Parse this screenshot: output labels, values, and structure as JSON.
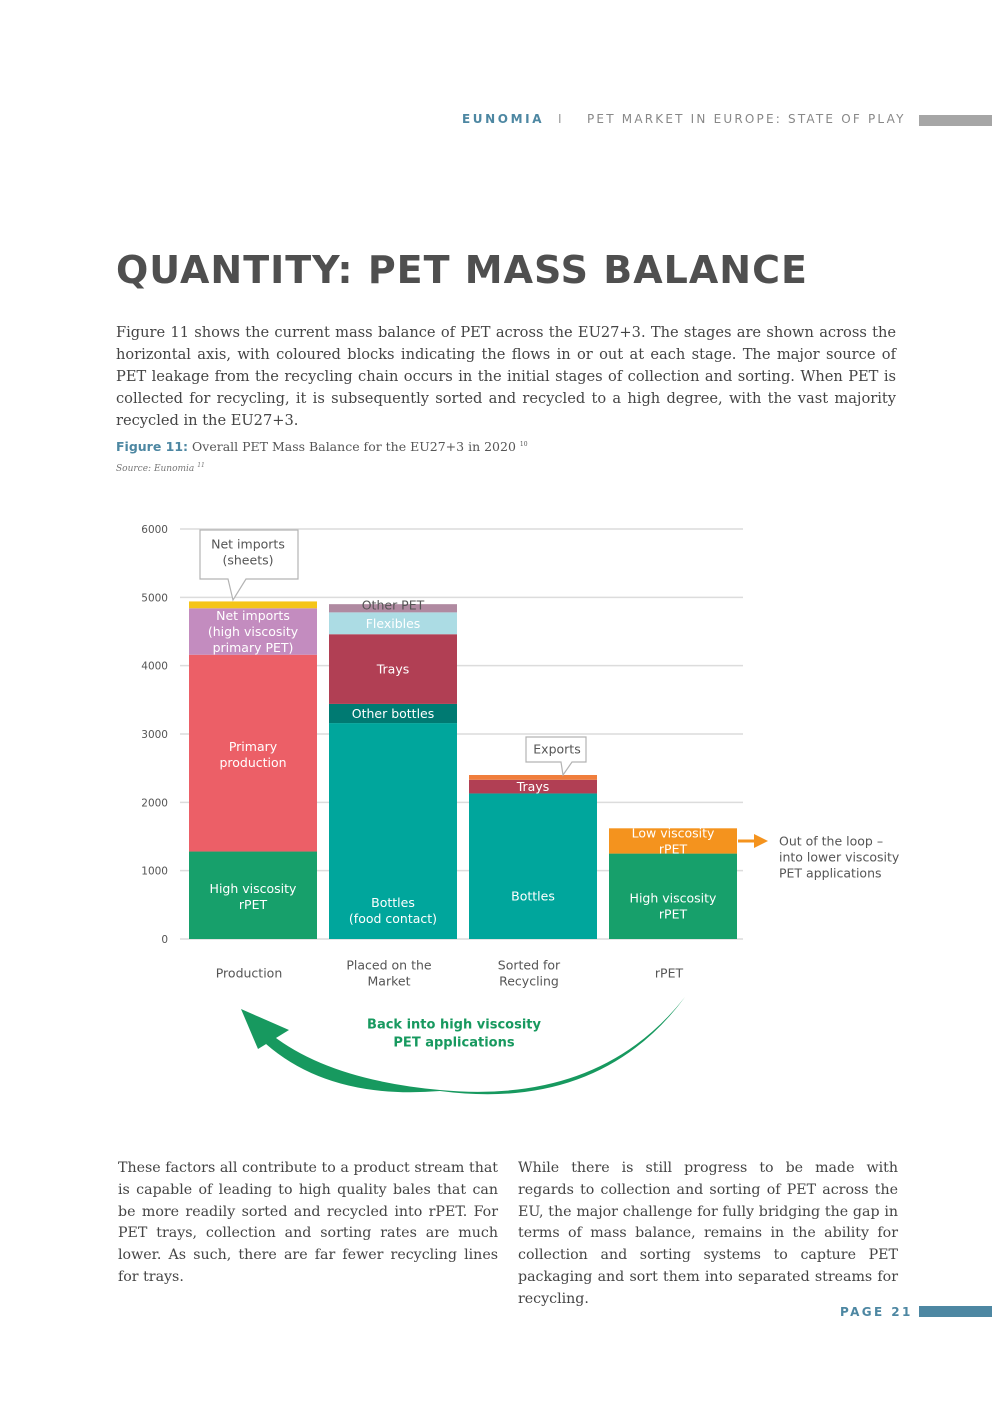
{
  "header": {
    "brand": "EUNOMIA",
    "separator": "I",
    "title": "PET MARKET IN EUROPE: STATE OF PLAY"
  },
  "page_title": "QUANTITY: PET MASS BALANCE",
  "intro": "Figure 11 shows the current mass balance of PET across the EU27+3. The stages are shown across the horizontal axis, with coloured blocks indicating the flows in or out at each stage. The major source of PET leakage from the recycling chain occurs in the initial stages of collection and sorting. When PET is collected for recycling, it is subsequently sorted and recycled to a high degree, with the vast majority recycled in the EU27+3.",
  "figure": {
    "label": "Figure 11:",
    "caption": "Overall PET Mass Balance for the EU27+3 in 2020",
    "caption_ref": "10",
    "source": "Source: Eunomia",
    "source_ref": "11"
  },
  "chart_data": {
    "type": "bar",
    "stacked": true,
    "categories": [
      "Production",
      "Placed on the Market",
      "Sorted for Recycling",
      "rPET"
    ],
    "category_lines": [
      [
        "Production"
      ],
      [
        "Placed on the",
        "Market"
      ],
      [
        "Sorted for",
        "Recycling"
      ],
      [
        "rPET"
      ]
    ],
    "ylim": [
      0,
      6000
    ],
    "yticks": [
      0,
      1000,
      2000,
      3000,
      4000,
      5000,
      6000
    ],
    "grid": true,
    "series_segments": [
      [
        {
          "label": "High viscosity rPET",
          "lines": [
            "High viscosity",
            "rPET"
          ],
          "value": 1280,
          "color": "#17a06b"
        },
        {
          "label": "Primary production",
          "lines": [
            "Primary",
            "production"
          ],
          "value": 2880,
          "color": "#ec5f67"
        },
        {
          "label": "Net imports (high viscosity primary PET)",
          "lines": [
            "Net imports",
            "(high viscosity",
            "primary PET)"
          ],
          "value": 680,
          "color": "#c38cbf"
        },
        {
          "label": "Net imports (sheets)",
          "lines": [],
          "value": 100,
          "color": "#f5c518"
        }
      ],
      [
        {
          "label": "Bottles (food contact)",
          "lines": [
            "Bottles",
            "(food contact)"
          ],
          "value": 3160,
          "color": "#00a69c"
        },
        {
          "label": "Other bottles",
          "lines": [
            "Other bottles"
          ],
          "value": 280,
          "color": "#007a72"
        },
        {
          "label": "Trays",
          "lines": [
            "Trays"
          ],
          "value": 1020,
          "color": "#b13f54"
        },
        {
          "label": "Flexibles",
          "lines": [
            "Flexibles"
          ],
          "value": 320,
          "color": "#acdce4"
        },
        {
          "label": "Other PET",
          "lines": [
            "Other PET"
          ],
          "value": 120,
          "color": "#b08aa1"
        }
      ],
      [
        {
          "label": "Bottles",
          "lines": [
            "Bottles"
          ],
          "value": 2130,
          "color": "#00a69c"
        },
        {
          "label": "Trays",
          "lines": [
            "Trays"
          ],
          "value": 200,
          "color": "#b13f54"
        },
        {
          "label": "Exports",
          "lines": [],
          "value": 70,
          "color": "#f07e3c"
        }
      ],
      [
        {
          "label": "High viscosity rPET",
          "lines": [
            "High viscosity",
            "rPET"
          ],
          "value": 1250,
          "color": "#17a06b"
        },
        {
          "label": "Low viscosity rPET",
          "lines": [
            "Low viscosity",
            "rPET"
          ],
          "value": 370,
          "color": "#f4931e"
        }
      ]
    ],
    "callouts": {
      "net_imports_sheets": [
        "Net imports",
        "(sheets)"
      ],
      "exports": [
        "Exports"
      ]
    },
    "annotations": {
      "out_of_loop": [
        "Out of the loop –",
        "into lower viscosity",
        "PET applications"
      ],
      "loop_back": [
        "Back into high viscosity",
        "PET applications"
      ]
    },
    "colors": {
      "grid": "#dcdcdc",
      "axis_text": "#555555",
      "loop_arrow": "#17995f",
      "out_arrow": "#f4931e"
    }
  },
  "body_left": "These factors all contribute to a product stream that is capable of leading to high quality bales that can be more readily sorted and recycled into rPET. For PET trays, collection and sorting rates are much lower. As such, there are far fewer recycling lines for trays.",
  "body_right": "While there is still progress to be made with regards to collection and sorting of PET across the EU, the major challenge for fully bridging the gap in terms of mass balance, remains in the ability for collection and sorting systems to capture PET packaging and sort them into separated streams for recycling.",
  "footer": {
    "page": "PAGE 21"
  }
}
